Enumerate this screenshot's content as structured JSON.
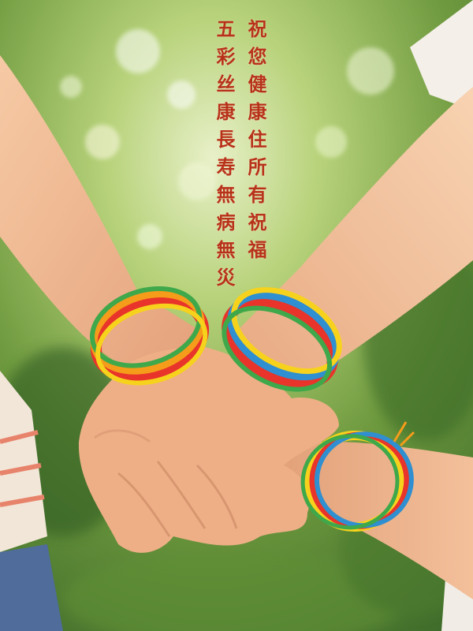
{
  "poem": {
    "column_right": "祝您健康住所有祝福",
    "column_left": "五彩丝康長寿無病無災"
  },
  "colors": {
    "text": "#b8321a",
    "background_green": "#7fae49",
    "skin": "#efb58e",
    "thread": [
      "#e8342a",
      "#f59c1a",
      "#f7d21c",
      "#3ea84a",
      "#2f8fd0"
    ]
  }
}
